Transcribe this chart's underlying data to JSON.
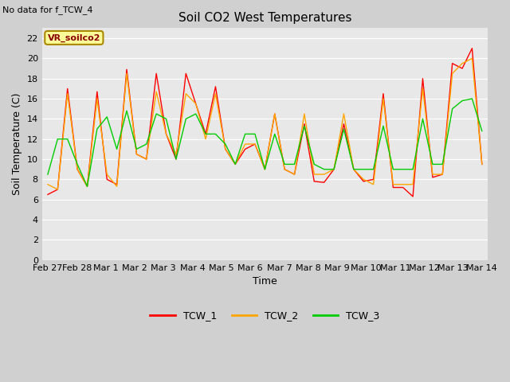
{
  "title": "Soil CO2 West Temperatures",
  "subtitle": "No data for f_TCW_4",
  "xlabel": "Time",
  "ylabel": "Soil Temperature (C)",
  "ylim": [
    0,
    23
  ],
  "yticks": [
    0,
    2,
    4,
    6,
    8,
    10,
    12,
    14,
    16,
    18,
    20,
    22
  ],
  "annotation_text": "VR_soilco2",
  "annotation_bg": "#ffff99",
  "annotation_border": "#aa8800",
  "legend_labels": [
    "TCW_1",
    "TCW_2",
    "TCW_3"
  ],
  "legend_colors": [
    "#ff0000",
    "#ffa500",
    "#00cc00"
  ],
  "x_tick_labels": [
    "Feb 27",
    "Feb 28",
    "Mar 1",
    "Mar 2",
    "Mar 3",
    "Mar 4",
    "Mar 5",
    "Mar 6",
    "Mar 7",
    "Mar 8",
    "Mar 9",
    "Mar 10",
    "Mar 11",
    "Mar 12",
    "Mar 13",
    "Mar 14"
  ],
  "tcw1": [
    6.5,
    7.0,
    17.0,
    9.0,
    7.3,
    16.7,
    8.0,
    7.5,
    18.9,
    10.5,
    10.0,
    18.5,
    12.5,
    10.0,
    18.5,
    15.5,
    12.5,
    17.2,
    11.0,
    9.5,
    11.0,
    11.5,
    9.0,
    14.5,
    9.0,
    8.5,
    13.5,
    7.8,
    7.7,
    9.0,
    13.5,
    9.0,
    7.8,
    8.0,
    16.5,
    7.2,
    7.2,
    6.3,
    18.0,
    8.2,
    8.5,
    19.5,
    19.0,
    21.0,
    9.5
  ],
  "tcw2": [
    7.5,
    7.0,
    16.5,
    9.0,
    7.3,
    16.0,
    8.5,
    7.3,
    18.5,
    10.5,
    10.0,
    16.7,
    12.5,
    10.5,
    16.5,
    15.5,
    12.0,
    16.5,
    11.0,
    9.5,
    11.5,
    11.5,
    9.0,
    14.5,
    9.0,
    8.5,
    14.5,
    8.5,
    8.5,
    9.0,
    14.5,
    9.0,
    8.0,
    7.5,
    16.0,
    7.5,
    7.5,
    7.5,
    17.0,
    8.5,
    8.5,
    18.5,
    19.5,
    20.0,
    9.5
  ],
  "tcw3": [
    8.5,
    12.0,
    12.0,
    9.5,
    7.3,
    13.0,
    14.2,
    11.0,
    14.8,
    11.0,
    11.5,
    14.5,
    14.0,
    10.0,
    14.0,
    14.5,
    12.5,
    12.5,
    11.5,
    9.5,
    12.5,
    12.5,
    9.0,
    12.5,
    9.5,
    9.5,
    13.3,
    9.5,
    9.0,
    9.0,
    13.0,
    9.0,
    9.0,
    9.0,
    13.3,
    9.0,
    9.0,
    9.0,
    14.0,
    9.5,
    9.5,
    15.0,
    15.8,
    16.0,
    12.8
  ]
}
